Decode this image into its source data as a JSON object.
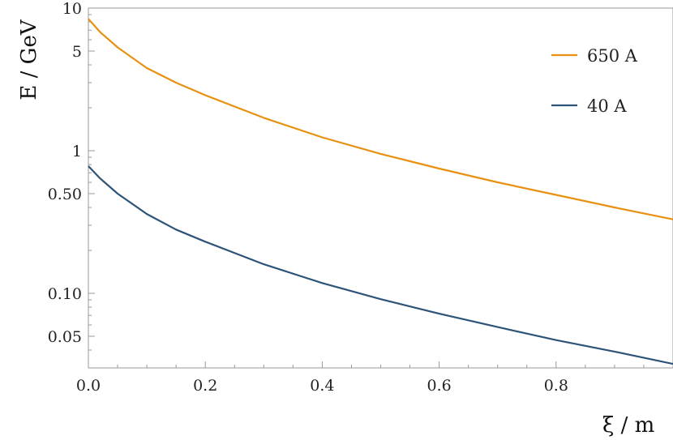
{
  "chart_data": {
    "type": "line",
    "title": "",
    "xlabel": "ξ / m",
    "ylabel": "E / GeV",
    "y_scale": "log",
    "xlim": [
      0,
      1.0
    ],
    "ylim": [
      0.03,
      10
    ],
    "x_ticks": [
      {
        "value": 0.0,
        "label": "0.0"
      },
      {
        "value": 0.2,
        "label": "0.2"
      },
      {
        "value": 0.4,
        "label": "0.4"
      },
      {
        "value": 0.6,
        "label": "0.6"
      },
      {
        "value": 0.8,
        "label": "0.8"
      }
    ],
    "y_ticks": [
      {
        "value": 10,
        "label": "10"
      },
      {
        "value": 5,
        "label": "5"
      },
      {
        "value": 1,
        "label": "1"
      },
      {
        "value": 0.5,
        "label": "0.50"
      },
      {
        "value": 0.1,
        "label": "0.10"
      },
      {
        "value": 0.05,
        "label": "0.05"
      }
    ],
    "grid": false,
    "legend_position": "top-right",
    "x": [
      0.0,
      0.02,
      0.05,
      0.1,
      0.15,
      0.2,
      0.3,
      0.4,
      0.5,
      0.6,
      0.7,
      0.8,
      0.9,
      1.0
    ],
    "series": [
      {
        "name": "650 A",
        "color": "#E8900F",
        "values": [
          8.4,
          6.8,
          5.3,
          3.8,
          3.0,
          2.45,
          1.7,
          1.24,
          0.95,
          0.75,
          0.6,
          0.49,
          0.4,
          0.33
        ]
      },
      {
        "name": "40 A",
        "color": "#2D5478",
        "values": [
          0.78,
          0.64,
          0.5,
          0.36,
          0.28,
          0.23,
          0.16,
          0.118,
          0.091,
          0.072,
          0.058,
          0.047,
          0.039,
          0.032
        ]
      }
    ]
  }
}
